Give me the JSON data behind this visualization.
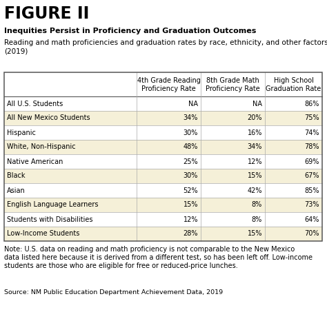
{
  "figure_label": "FIGURE II",
  "title": "Inequities Persist in Proficiency and Graduation Outcomes",
  "subtitle": "Reading and math proficiencies and graduation rates by race, ethnicity, and other factors\n(2019)",
  "col_headers": [
    "4th Grade Reading\nProficiency Rate",
    "8th Grade Math\nProficiency Rate",
    "High School\nGraduation Rate"
  ],
  "rows": [
    [
      "All U.S. Students",
      "NA",
      "NA",
      "86%"
    ],
    [
      "All New Mexico Students",
      "34%",
      "20%",
      "75%"
    ],
    [
      "Hispanic",
      "30%",
      "16%",
      "74%"
    ],
    [
      "White, Non-Hispanic",
      "48%",
      "34%",
      "78%"
    ],
    [
      "Native American",
      "25%",
      "12%",
      "69%"
    ],
    [
      "Black",
      "30%",
      "15%",
      "67%"
    ],
    [
      "Asian",
      "52%",
      "42%",
      "85%"
    ],
    [
      "English Language Learners",
      "15%",
      "8%",
      "73%"
    ],
    [
      "Students with Disabilities",
      "12%",
      "8%",
      "64%"
    ],
    [
      "Low-Income Students",
      "28%",
      "15%",
      "70%"
    ]
  ],
  "shaded_rows": [
    1,
    3,
    5,
    7,
    9
  ],
  "shade_color": "#f5f0d8",
  "note_line1": "Note: U.S. data on reading and math proficiency is not comparable to the New Mexico",
  "note_line2": "data listed here because it is derived from a different test, so has been left off. Low-income",
  "note_line3": "students are those who are eligible for free or reduced-price lunches.",
  "source": "Source: NM Public Education Department Achievement Data, 2019",
  "bg_color": "#ffffff",
  "border_color": "#555555",
  "grid_color": "#aaaaaa",
  "figure_label_fontsize": 17,
  "title_fontsize": 8.0,
  "subtitle_fontsize": 7.5,
  "header_fontsize": 7.0,
  "cell_fontsize": 7.0,
  "note_fontsize": 7.0,
  "source_fontsize": 6.8
}
